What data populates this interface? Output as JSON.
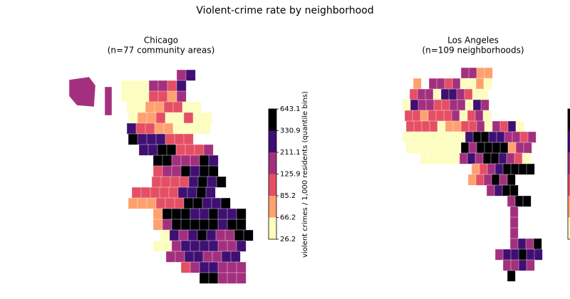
{
  "title": "Violent-crime rate by neighborhood",
  "maps": [
    {
      "title": "Chicago",
      "subtitle": "(n=77 community areas)"
    },
    {
      "title": "Los Angeles",
      "subtitle": "(n=109 neighborhoods)"
    }
  ],
  "colorbar": {
    "label": "violent crimes / 1,000 residents (quantile bins)",
    "ticks": [
      26.2,
      66.2,
      85.2,
      125.9,
      211.1,
      330.9,
      643.1
    ],
    "colors": [
      "#fcfdbf",
      "#fea16e",
      "#e44f64",
      "#a3307e",
      "#3f0f72",
      "#000004"
    ]
  }
}
